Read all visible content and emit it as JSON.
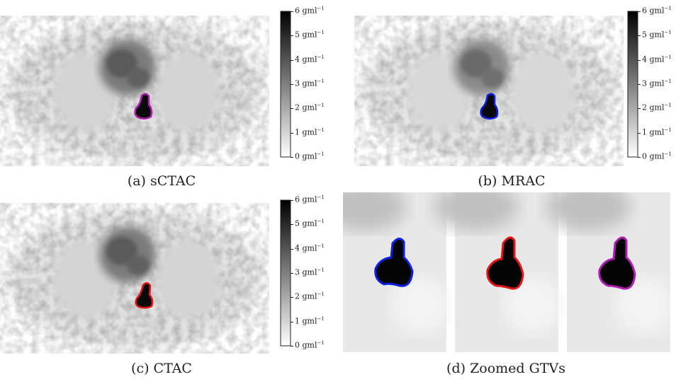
{
  "figure": {
    "panels": [
      {
        "id": "a",
        "caption": "(a) sCTAC",
        "contour_color": "#b020b0"
      },
      {
        "id": "b",
        "caption": "(b) MRAC",
        "contour_color": "#1020e0"
      },
      {
        "id": "c",
        "caption": "(c) CTAC",
        "contour_color": "#e01818"
      }
    ],
    "zoom": {
      "caption": "(d) Zoomed GTVs",
      "contour_colors": [
        "#1020e0",
        "#e01818",
        "#b020b0"
      ]
    },
    "colorbar": {
      "ticks": [
        {
          "value": "6",
          "unit": "gml",
          "exp": "−1"
        },
        {
          "value": "5",
          "unit": "gml",
          "exp": "−1"
        },
        {
          "value": "4",
          "unit": "gml",
          "exp": "−1"
        },
        {
          "value": "3",
          "unit": "gml",
          "exp": "−1"
        },
        {
          "value": "2",
          "unit": "gml",
          "exp": "−1"
        },
        {
          "value": "1",
          "unit": "gml",
          "exp": "−1"
        },
        {
          "value": "0",
          "unit": "gml",
          "exp": "−1"
        }
      ],
      "range": [
        0,
        6
      ]
    }
  }
}
